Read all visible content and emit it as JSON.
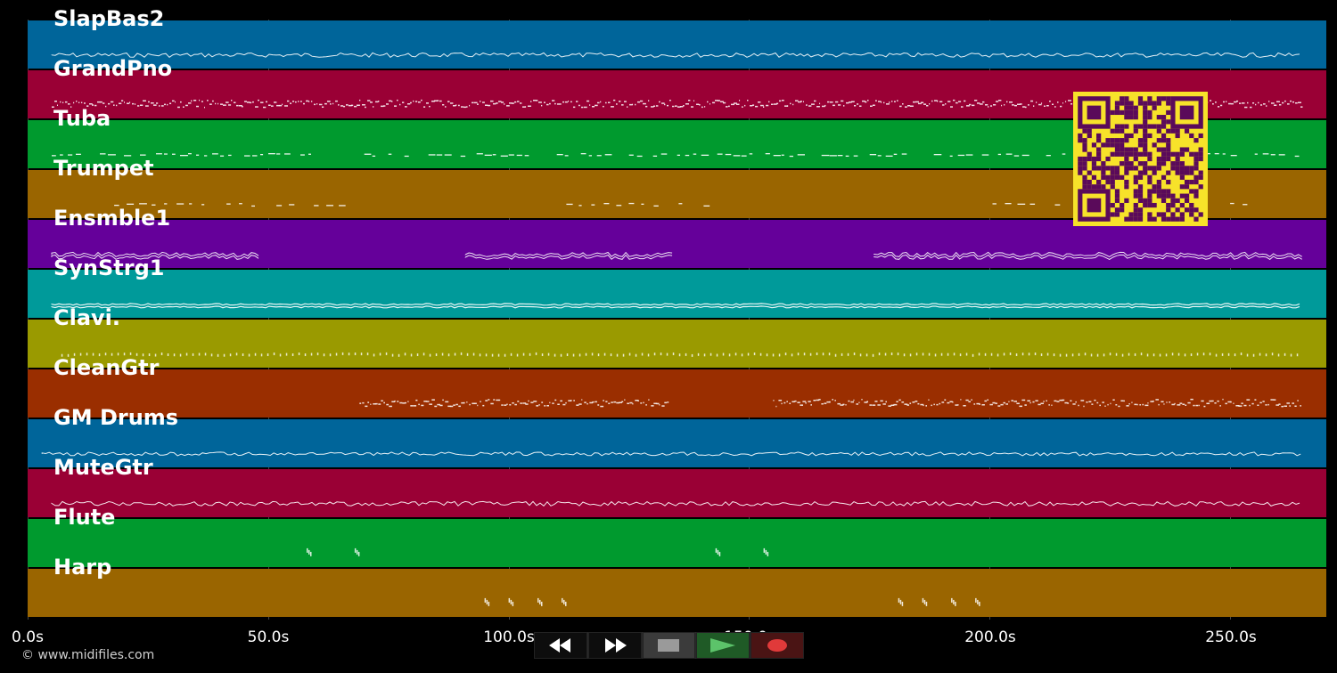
{
  "tracks": [
    {
      "name": "SlapBas2",
      "color": "#00659a",
      "pattern": "wave",
      "segments": [
        [
          5,
          265
        ]
      ]
    },
    {
      "name": "GrandPno",
      "color": "#9a0035",
      "pattern": "dense",
      "segments": [
        [
          5,
          265
        ]
      ]
    },
    {
      "name": "Tuba",
      "color": "#009a2e",
      "pattern": "dashes",
      "segments": [
        [
          5,
          60
        ],
        [
          70,
          265
        ]
      ]
    },
    {
      "name": "Trumpet",
      "color": "#9a6500",
      "pattern": "sparse",
      "segments": [
        [
          18,
          65
        ],
        [
          112,
          150
        ],
        [
          198,
          240
        ],
        [
          250,
          255
        ]
      ]
    },
    {
      "name": "Ensmble1",
      "color": "#65009a",
      "pattern": "lines",
      "segments": [
        [
          5,
          48
        ],
        [
          91,
          134
        ],
        [
          176,
          265
        ]
      ]
    },
    {
      "name": "SynStrg1",
      "color": "#009a9a",
      "pattern": "double",
      "segments": [
        [
          5,
          265
        ]
      ]
    },
    {
      "name": "Clavi.",
      "color": "#9a9a00",
      "pattern": "dots",
      "segments": [
        [
          7,
          265
        ]
      ]
    },
    {
      "name": "CleanGtr",
      "color": "#9a2e00",
      "pattern": "dense",
      "segments": [
        [
          69,
          133
        ],
        [
          155,
          265
        ]
      ]
    },
    {
      "name": "GM Drums",
      "color": "#00659a",
      "pattern": "drums",
      "segments": [
        [
          3,
          265
        ]
      ]
    },
    {
      "name": "MuteGtr",
      "color": "#9a0035",
      "pattern": "loops",
      "segments": [
        [
          5,
          265
        ]
      ]
    },
    {
      "name": "Flute",
      "color": "#009a2e",
      "pattern": "blips",
      "segments": [
        [
          58,
          60
        ],
        [
          68,
          70
        ],
        [
          143,
          145
        ],
        [
          153,
          155
        ]
      ]
    },
    {
      "name": "Harp",
      "color": "#9a6500",
      "pattern": "blips",
      "segments": [
        [
          95,
          97
        ],
        [
          100,
          102
        ],
        [
          106,
          108
        ],
        [
          111,
          113
        ],
        [
          181,
          183
        ],
        [
          186,
          188
        ],
        [
          192,
          194
        ],
        [
          197,
          199
        ]
      ]
    }
  ],
  "timeline": {
    "tick_labels": [
      "0.0s",
      "50.0s",
      "100.0s",
      "150.0s",
      "200.0s",
      "250.0s"
    ],
    "tick_values": [
      0,
      50,
      100,
      150,
      200,
      250
    ],
    "range": [
      0,
      270
    ]
  },
  "copyright": "© www.midifiles.com",
  "transport": {
    "rewind": "rewind-icon",
    "forward": "fast-forward-icon",
    "stop": "stop-icon",
    "play": "play-icon",
    "record": "record-icon"
  },
  "colors": {
    "background": "#000000",
    "play_icon": "#5cc36a",
    "record_icon": "#e03a3a",
    "qr_fg": "#5a0a5a",
    "qr_bg": "#f7e22a"
  }
}
